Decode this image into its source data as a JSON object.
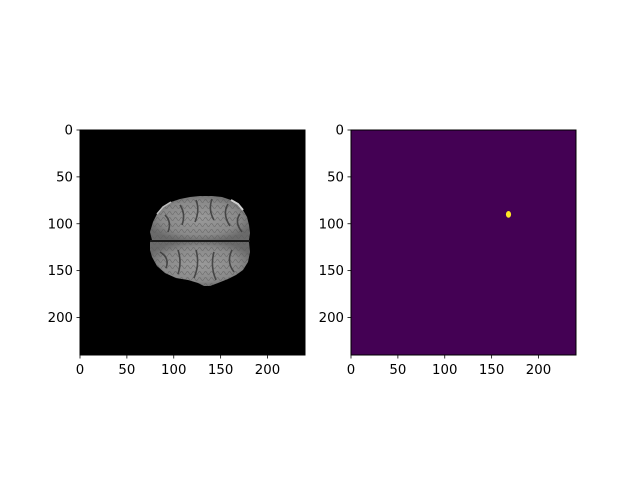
{
  "figure": {
    "panels": [
      {
        "name": "brain-mri-slice",
        "content": "grayscale axial brain MRI slice on black background",
        "x_ticks": [
          "0",
          "50",
          "100",
          "150",
          "200"
        ],
        "y_ticks": [
          "0",
          "50",
          "100",
          "150",
          "200"
        ],
        "x_range": [
          0,
          240
        ],
        "y_range": [
          0,
          240
        ],
        "background_color": "#000000"
      },
      {
        "name": "segmentation-mask",
        "content": "segmentation mask with a single small yellow lesion region",
        "x_ticks": [
          "0",
          "50",
          "100",
          "150",
          "200"
        ],
        "y_ticks": [
          "0",
          "50",
          "100",
          "150",
          "200"
        ],
        "x_range": [
          0,
          240
        ],
        "y_range": [
          0,
          240
        ],
        "background_color": "#440154",
        "lesion_color": "#fde725",
        "lesion_center": [
          168,
          90
        ]
      }
    ]
  }
}
